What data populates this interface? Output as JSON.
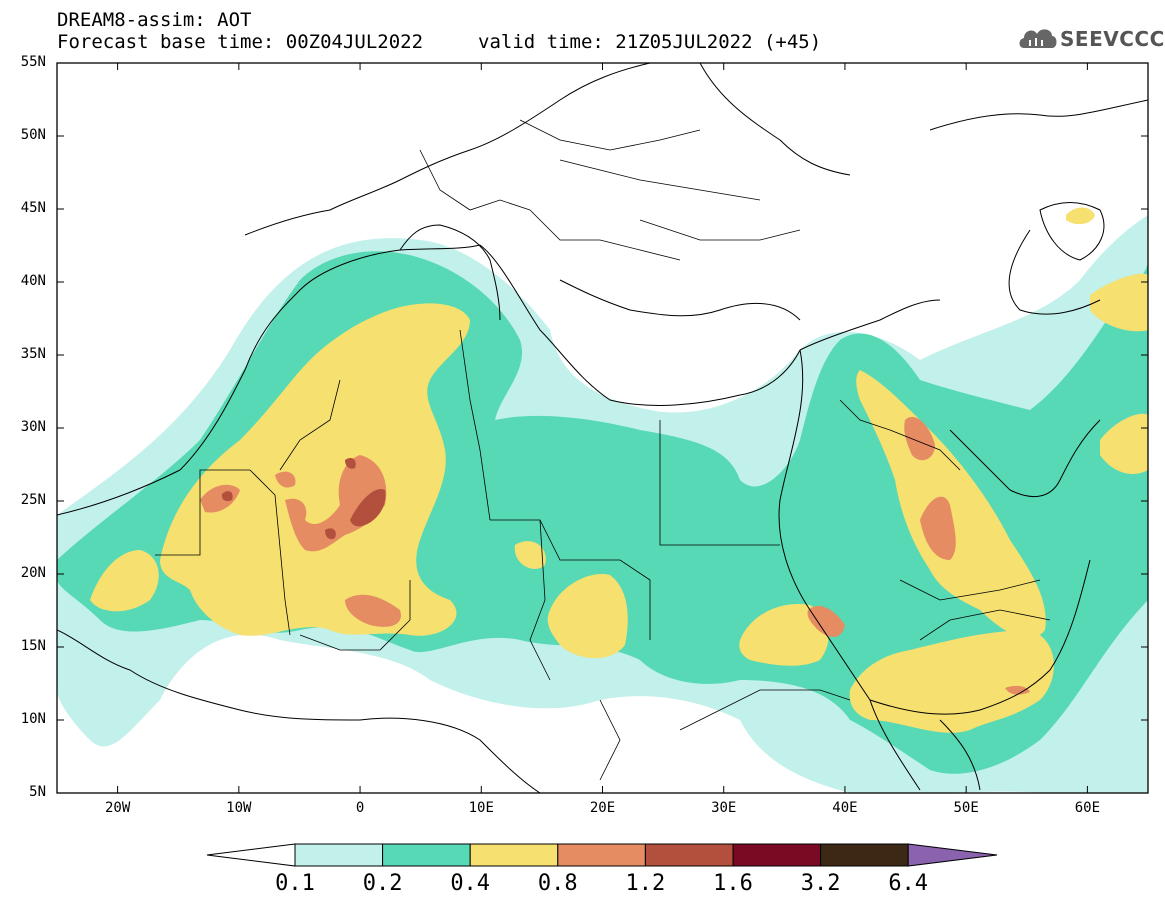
{
  "header": {
    "title": "DREAM8-assim: AOT",
    "base_time": "Forecast base time: 00Z04JUL2022",
    "valid_time": "valid time: 21Z05JUL2022 (+45)"
  },
  "logo": {
    "text": "SEEVCCC",
    "color": "#555555"
  },
  "axes": {
    "lat_labels": [
      "55N",
      "50N",
      "45N",
      "40N",
      "35N",
      "30N",
      "25N",
      "20N",
      "15N",
      "10N",
      "5N"
    ],
    "lon_labels": [
      "20W",
      "10W",
      "0",
      "10E",
      "20E",
      "30E",
      "40E",
      "50E",
      "60E"
    ]
  },
  "colorbar": {
    "labels": [
      "0.1",
      "0.2",
      "0.4",
      "0.8",
      "1.2",
      "1.6",
      "3.2",
      "6.4"
    ],
    "colors": [
      "#c2f0ea",
      "#56d9b4",
      "#f5e070",
      "#e58c63",
      "#b34f3d",
      "#7a0a24",
      "#3c2814",
      "#8a62ad"
    ],
    "under_color": "#ffffff"
  },
  "field_colors": {
    "level1": "#c2f0ea",
    "level2": "#56d9b4",
    "level3": "#f5e070",
    "level4": "#e58c63",
    "level5": "#b34f3d"
  }
}
